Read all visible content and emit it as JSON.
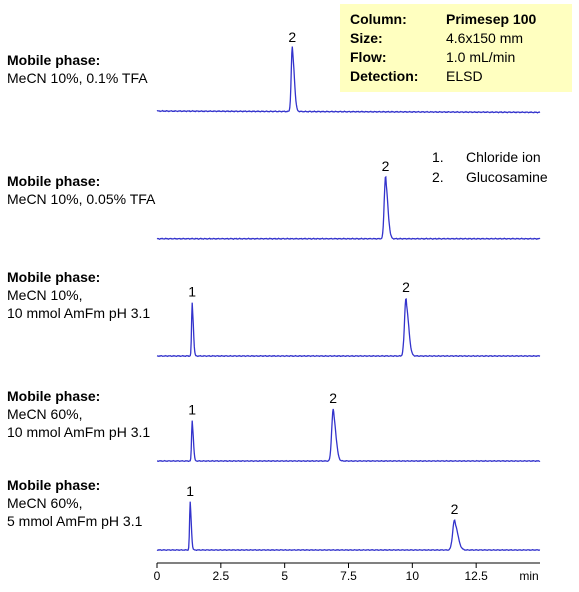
{
  "info_box": {
    "rows": [
      {
        "key": "Column:",
        "value": "Primesep 100"
      },
      {
        "key": "Size:",
        "value": "4.6x150 mm"
      },
      {
        "key": "Flow:",
        "value": "1.0 mL/min"
      },
      {
        "key": "Detection:",
        "value": "ELSD"
      }
    ]
  },
  "legend": {
    "items": [
      {
        "num": "1.",
        "label": "Chloride ion"
      },
      {
        "num": "2.",
        "label": "Glucosamine"
      }
    ]
  },
  "mobile_phases": [
    {
      "title": "Mobile phase:",
      "lines": [
        "MeCN 10%, 0.1% TFA"
      ]
    },
    {
      "title": "Mobile phase:",
      "lines": [
        "MeCN 10%, 0.05% TFA"
      ]
    },
    {
      "title": "Mobile phase:",
      "lines": [
        "MeCN 10%,",
        "10 mmol AmFm pH 3.1"
      ]
    },
    {
      "title": "Mobile phase:",
      "lines": [
        "MeCN 60%,",
        "10 mmol AmFm pH 3.1"
      ]
    },
    {
      "title": "Mobile phase:",
      "lines": [
        "MeCN 60%,",
        "5 mmol AmFm pH 3.1"
      ]
    }
  ],
  "colors": {
    "trace": "#3333cc",
    "info_box": "#ffffc0"
  },
  "chart_data": {
    "type": "line",
    "xlabel": "min",
    "xlim": [
      0,
      15
    ],
    "x_ticks": [
      "0",
      "2.5",
      "5",
      "7.5",
      "10",
      "12.5"
    ],
    "x_tick_values": [
      0,
      2.5,
      5,
      7.5,
      10,
      12.5
    ],
    "ylim": [
      0,
      1
    ],
    "series": [
      {
        "baseline_start": 0.03,
        "baseline_end": 0.01,
        "peaks": [
          {
            "label": "2",
            "time": 5.3,
            "height": 1.0,
            "width": 0.06
          }
        ]
      },
      {
        "baseline_start": 0.02,
        "baseline_end": 0.02,
        "peaks": [
          {
            "label": "2",
            "time": 8.95,
            "height": 1.0,
            "width": 0.07
          }
        ]
      },
      {
        "baseline_start": 0.0,
        "baseline_end": 0.0,
        "peaks": [
          {
            "label": "1",
            "time": 1.38,
            "height": 0.92,
            "width": 0.035
          },
          {
            "label": "2",
            "time": 9.75,
            "height": 1.0,
            "width": 0.08
          }
        ]
      },
      {
        "baseline_start": 0.0,
        "baseline_end": 0.0,
        "peaks": [
          {
            "label": "1",
            "time": 1.38,
            "height": 0.78,
            "width": 0.035
          },
          {
            "label": "2",
            "time": 6.9,
            "height": 1.0,
            "width": 0.08
          }
        ]
      },
      {
        "baseline_start": 0.0,
        "baseline_end": 0.0,
        "peaks": [
          {
            "label": "1",
            "time": 1.3,
            "height": 1.0,
            "width": 0.035
          },
          {
            "label": "2",
            "time": 11.65,
            "height": 0.62,
            "width": 0.1
          }
        ]
      }
    ]
  }
}
